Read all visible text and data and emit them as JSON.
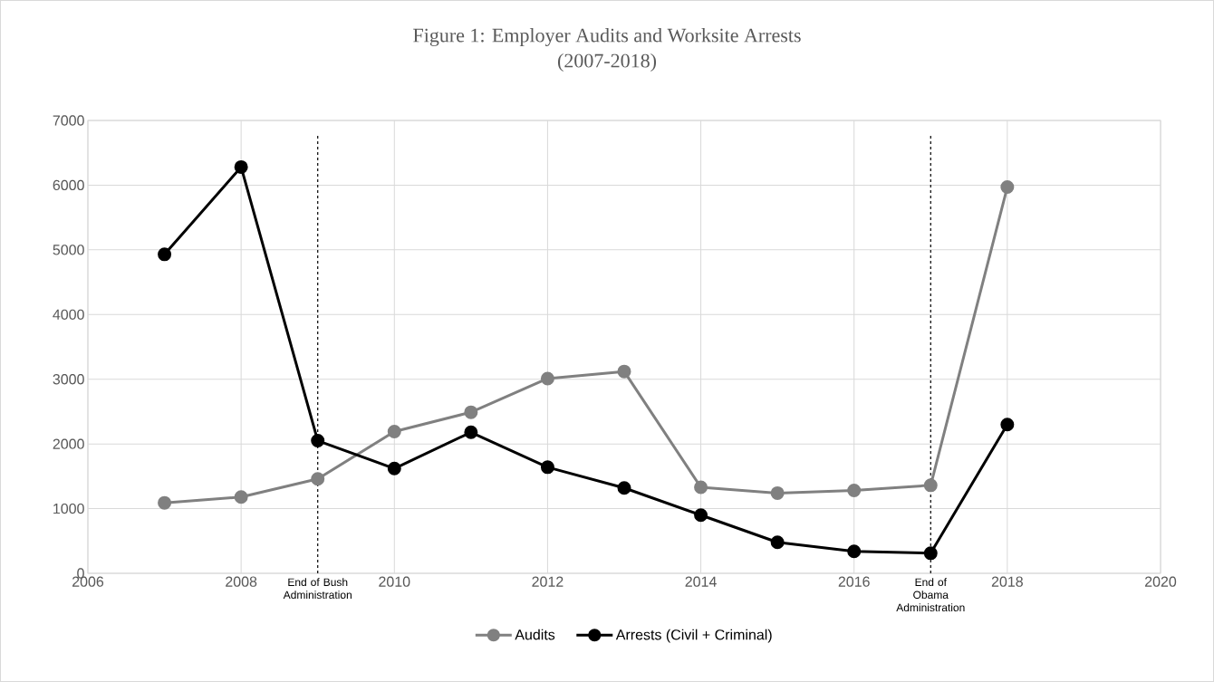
{
  "chart_data": {
    "type": "line",
    "title": "Figure 1: Employer Audits and Worksite Arrests",
    "subtitle": "(2007-2018)",
    "x": [
      2007,
      2008,
      2009,
      2010,
      2011,
      2012,
      2013,
      2014,
      2015,
      2016,
      2017,
      2018
    ],
    "series": [
      {
        "name": "Audits",
        "color": "#808080",
        "values": [
          1090,
          1180,
          1460,
          2190,
          2490,
          3010,
          3120,
          1330,
          1240,
          1280,
          1360,
          5970
        ]
      },
      {
        "name": "Arrests (Civil + Criminal)",
        "color": "#000000",
        "values": [
          4930,
          6280,
          2050,
          1620,
          2180,
          1640,
          1320,
          900,
          480,
          340,
          310,
          2300
        ]
      }
    ],
    "xlim": [
      2006,
      2020
    ],
    "xticks": [
      2006,
      2008,
      2010,
      2012,
      2014,
      2016,
      2018,
      2020
    ],
    "ylim": [
      0,
      7000
    ],
    "yticks": [
      0,
      1000,
      2000,
      3000,
      4000,
      5000,
      6000,
      7000
    ],
    "ref_lines": [
      {
        "axis": "x",
        "value": 2009,
        "label": "End of Bush Administration",
        "color": "#000000",
        "line_style": "dashed"
      },
      {
        "axis": "x",
        "value": 2017,
        "label": "End of Obama Administration",
        "color": "#000000",
        "line_style": "dashed"
      }
    ],
    "grid": true,
    "legend": "bottom",
    "marker": "circle",
    "line_style": "solid"
  }
}
